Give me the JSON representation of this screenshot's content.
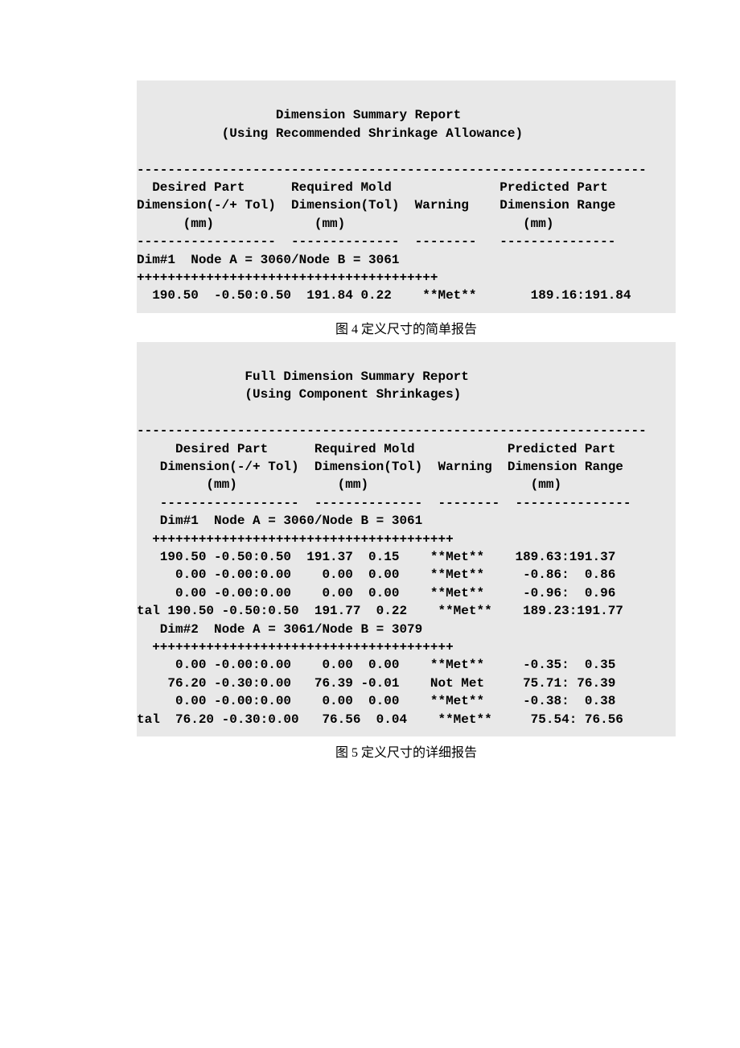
{
  "report1": {
    "title1": "Dimension Summary Report",
    "title2": "(Using Recommended Shrinkage Allowance)",
    "hr": "------------------------------------------------------------------",
    "hdr1": "  Desired Part      Required Mold              Predicted Part",
    "hdr2": "Dimension(-/+ Tol)  Dimension(Tol)  Warning    Dimension Range",
    "hdr3": "      (mm)             (mm)                       (mm)",
    "underline": "------------------  --------------  --------   ---------------",
    "dim_header": "Dim#1  Node A = 3060/Node B = 3061",
    "plusline": "+++++++++++++++++++++++++++++++++++++++",
    "row1": "  190.50  -0.50:0.50  191.84 0.22    **Met**       189.16:191.84",
    "caption": "图 4 定义尺寸的简单报告",
    "background_color": "#e8e8e8",
    "text_color": "#000000",
    "font_family": "Courier New",
    "font_size_pt": 12,
    "font_weight": "bold"
  },
  "report2": {
    "title1": "Full Dimension Summary Report",
    "title2": "(Using Component Shrinkages)",
    "hr": "------------------------------------------------------------------",
    "hdr1": "     Desired Part      Required Mold            Predicted Part",
    "hdr2": "   Dimension(-/+ Tol)  Dimension(Tol)  Warning  Dimension Range",
    "hdr3": "         (mm)             (mm)                     (mm)",
    "underline": "   ------------------  --------------  --------  ---------------",
    "dim1_header": "   Dim#1  Node A = 3060/Node B = 3061",
    "plusline": "  +++++++++++++++++++++++++++++++++++++++",
    "r1": "   190.50 -0.50:0.50  191.37  0.15    **Met**    189.63:191.37",
    "r2": "     0.00 -0.00:0.00    0.00  0.00    **Met**     -0.86:  0.86",
    "r3": "     0.00 -0.00:0.00    0.00  0.00    **Met**     -0.96:  0.96",
    "r4": "tal 190.50 -0.50:0.50  191.77  0.22    **Met**    189.23:191.77",
    "dim2_header": "   Dim#2  Node A = 3061/Node B = 3079",
    "r5": "     0.00 -0.00:0.00    0.00  0.00    **Met**     -0.35:  0.35",
    "r6": "    76.20 -0.30:0.00   76.39 -0.01    Not Met     75.71: 76.39",
    "r7": "     0.00 -0.00:0.00    0.00  0.00    **Met**     -0.38:  0.38",
    "r8": "tal  76.20 -0.30:0.00   76.56  0.04    **Met**     75.54: 76.56",
    "caption": "图 5 定义尺寸的详细报告",
    "background_color": "#e8e8e8",
    "text_color": "#000000",
    "font_family": "Courier New",
    "font_size_pt": 12,
    "font_weight": "bold"
  }
}
